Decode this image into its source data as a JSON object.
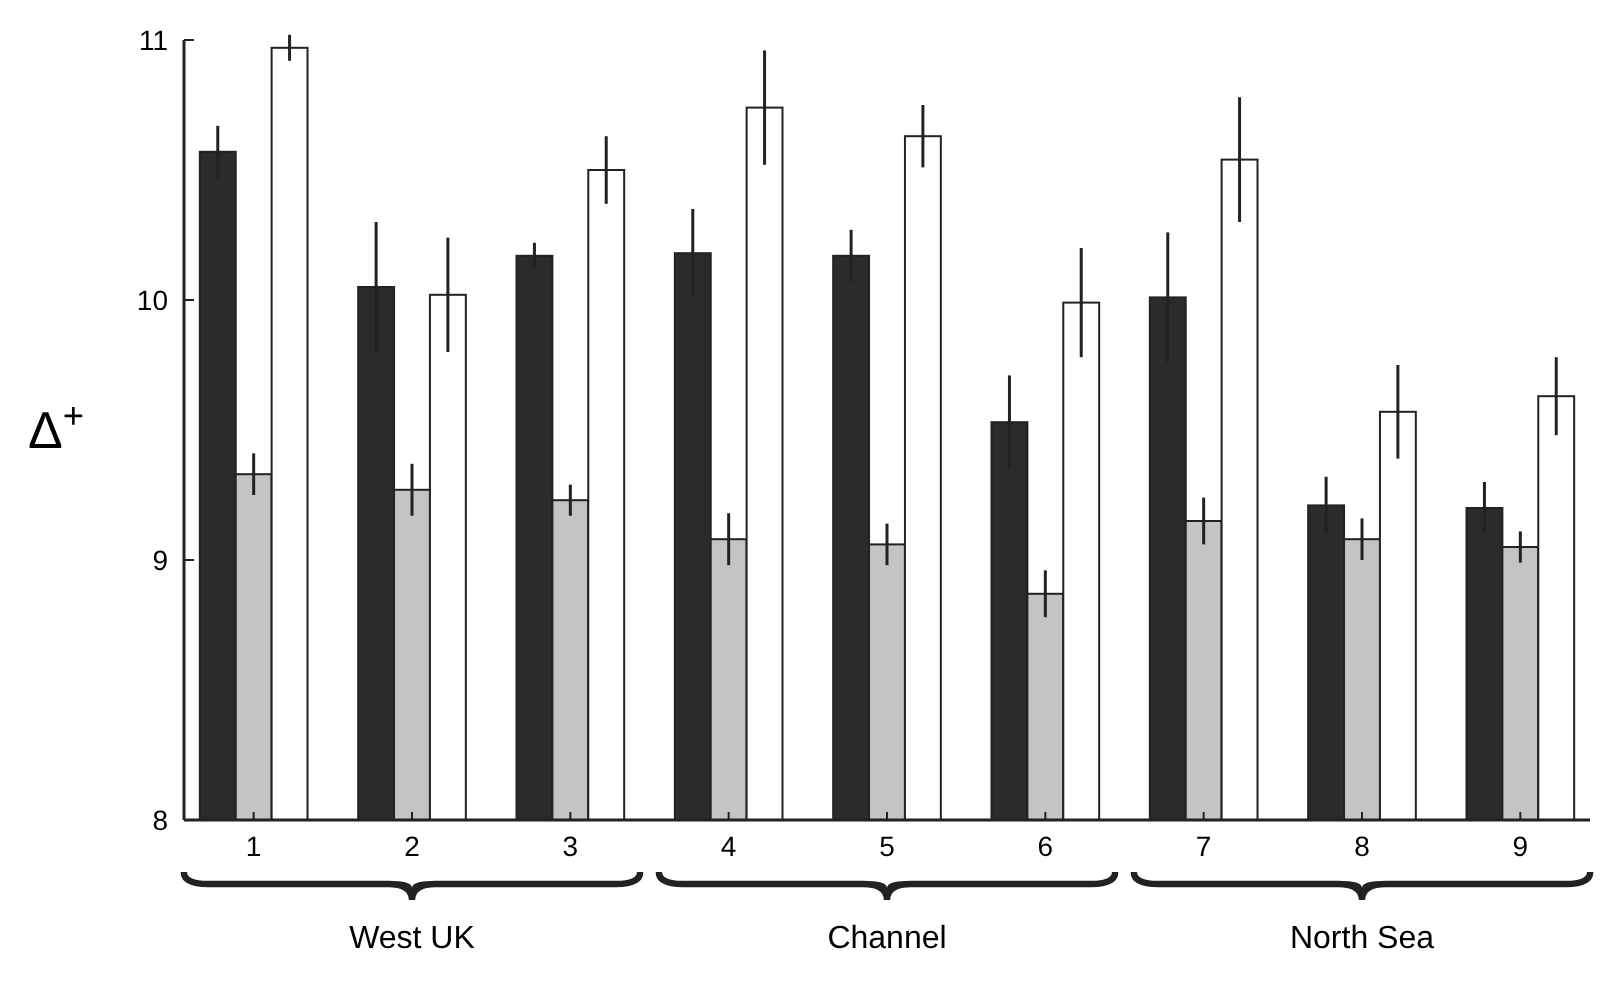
{
  "chart_data": {
    "type": "bar",
    "ylabel": "Δ$^{+}$",
    "categories": [
      "1",
      "2",
      "3",
      "4",
      "5",
      "6",
      "7",
      "8",
      "9"
    ],
    "ylim": [
      8,
      11
    ],
    "yticks": [
      8,
      9,
      10,
      11
    ],
    "grid": false,
    "series": [
      {
        "color": "#2b2b2b",
        "values": [
          10.57,
          10.05,
          10.17,
          10.18,
          10.17,
          9.53,
          10.01,
          9.21,
          9.2
        ],
        "errors": [
          0.1,
          0.25,
          0.05,
          0.17,
          0.1,
          0.18,
          0.25,
          0.11,
          0.1
        ]
      },
      {
        "color": "#c4c4c4",
        "values": [
          9.33,
          9.27,
          9.23,
          9.08,
          9.06,
          8.87,
          9.15,
          9.08,
          9.05
        ],
        "errors": [
          0.08,
          0.1,
          0.06,
          0.1,
          0.08,
          0.09,
          0.09,
          0.08,
          0.06
        ]
      },
      {
        "color": "#ffffff",
        "values": [
          10.97,
          10.02,
          10.5,
          10.74,
          10.63,
          9.99,
          10.54,
          9.57,
          9.63
        ],
        "errors": [
          0.05,
          0.22,
          0.13,
          0.22,
          0.12,
          0.21,
          0.24,
          0.18,
          0.15
        ]
      }
    ],
    "annotations": [
      "West UK",
      "Channel",
      "North Sea"
    ]
  }
}
